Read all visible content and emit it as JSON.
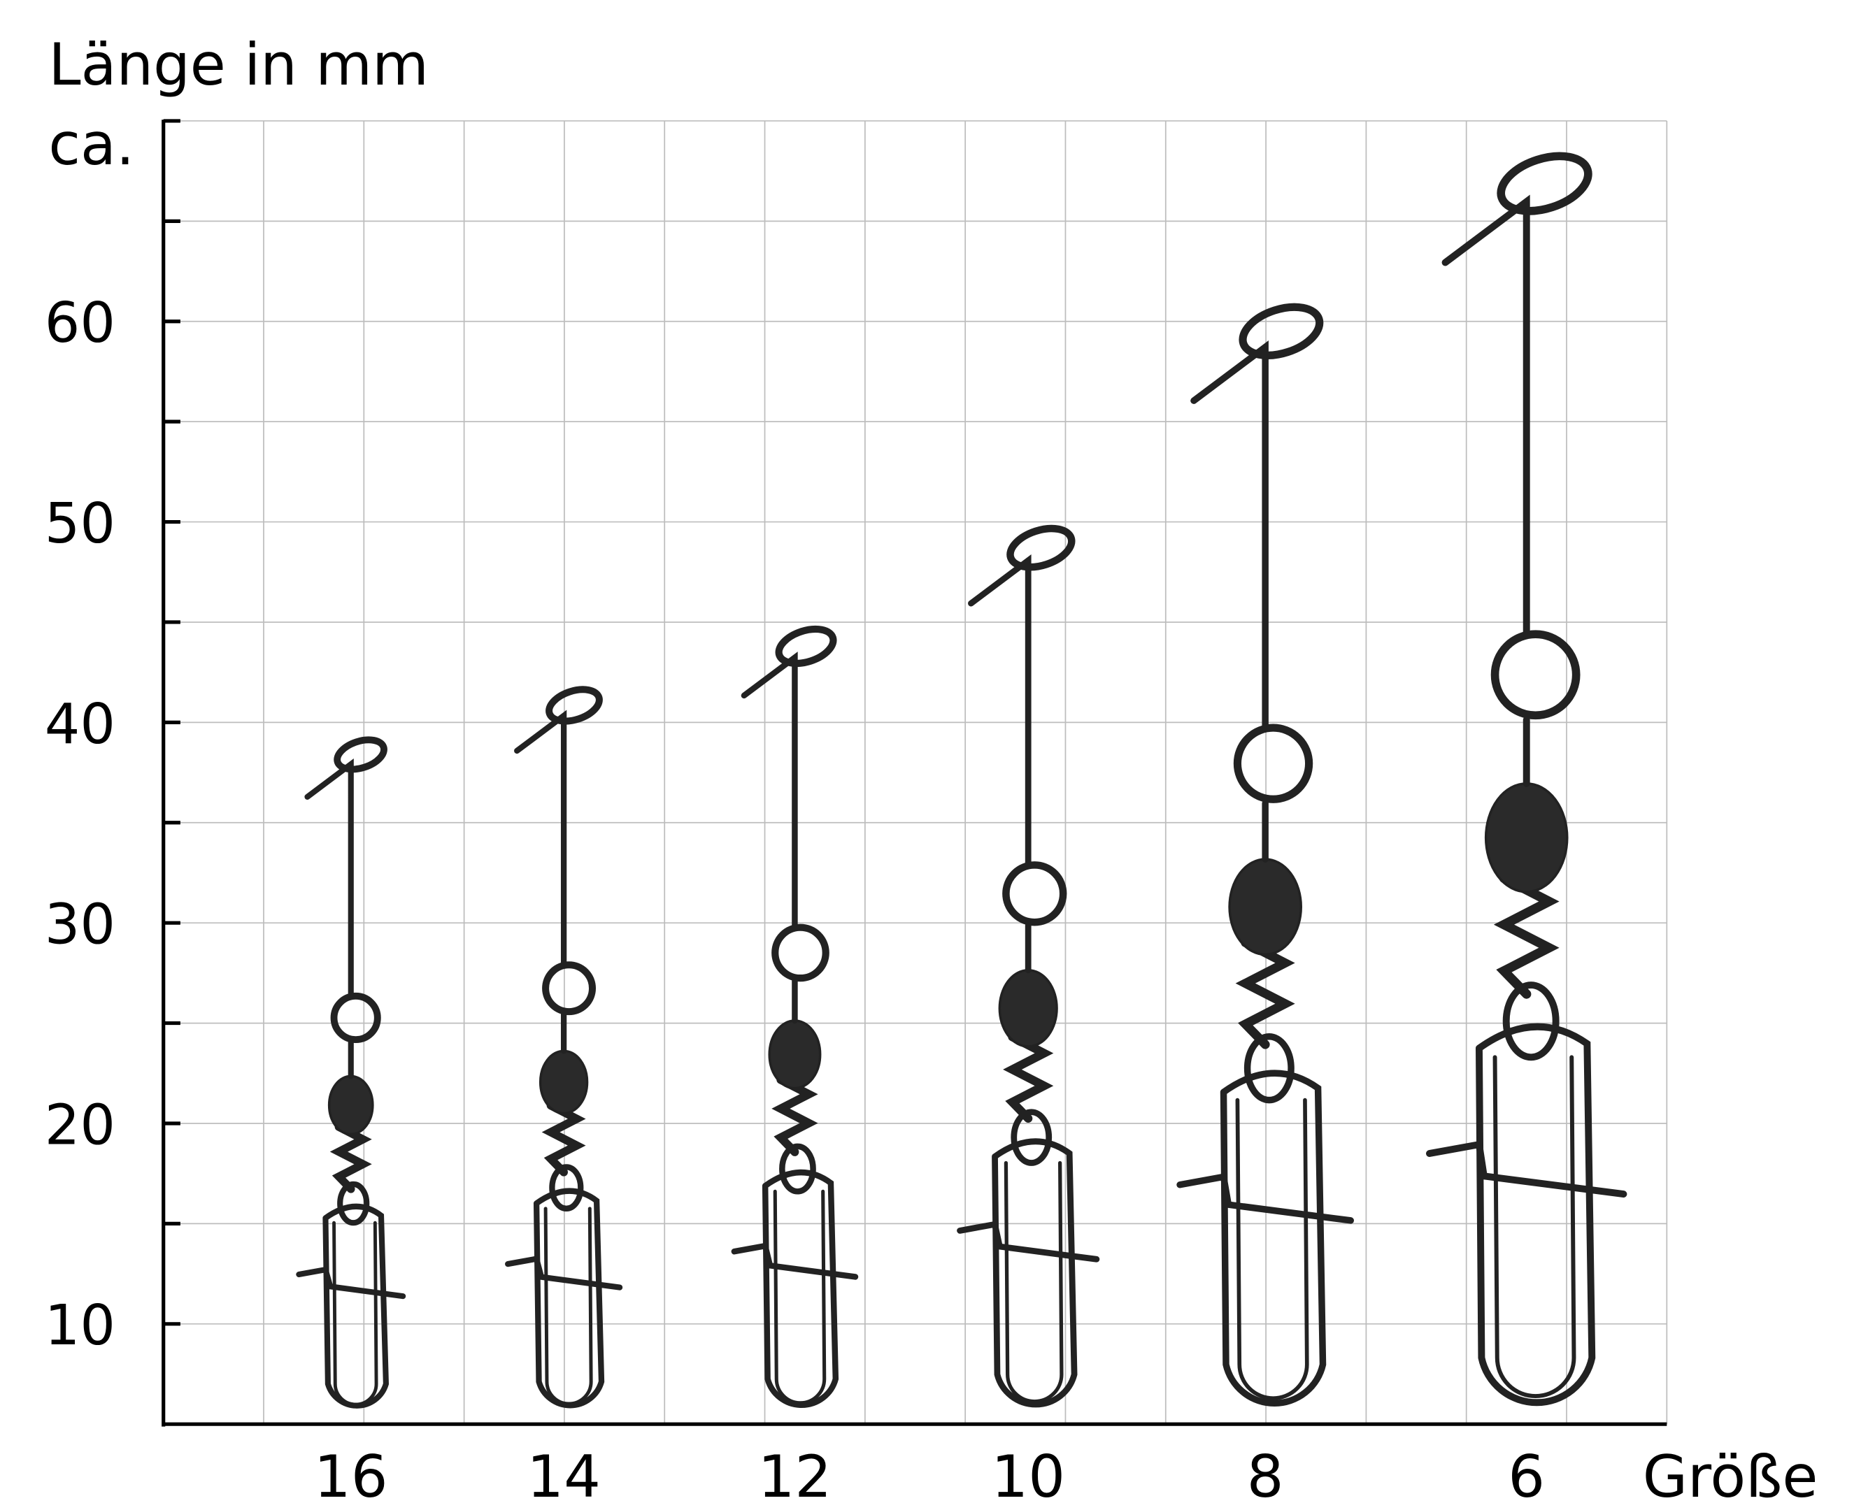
{
  "chart_data": {
    "type": "bar",
    "ylabel": "Länge in mm",
    "ylabel_note": "ca.",
    "xlabel": "Größe",
    "categories": [
      "16",
      "14",
      "12",
      "10",
      "8",
      "6"
    ],
    "values": [
      39,
      41.5,
      44.5,
      49.5,
      60.5,
      68
    ],
    "marks_depict": "snap swivel photos, each spanning roughly 5.5 mm up to its length value",
    "ylim": [
      5,
      70
    ],
    "yticks": [
      10,
      20,
      30,
      40,
      50,
      60
    ],
    "yticks_labeled": [
      "10",
      "20",
      "30",
      "40",
      "50",
      "60"
    ],
    "minor_tick_step": 5,
    "grid": true,
    "colors": {
      "grid": "#bdbdbd",
      "axis": "#000000",
      "wire": "#222222"
    }
  }
}
